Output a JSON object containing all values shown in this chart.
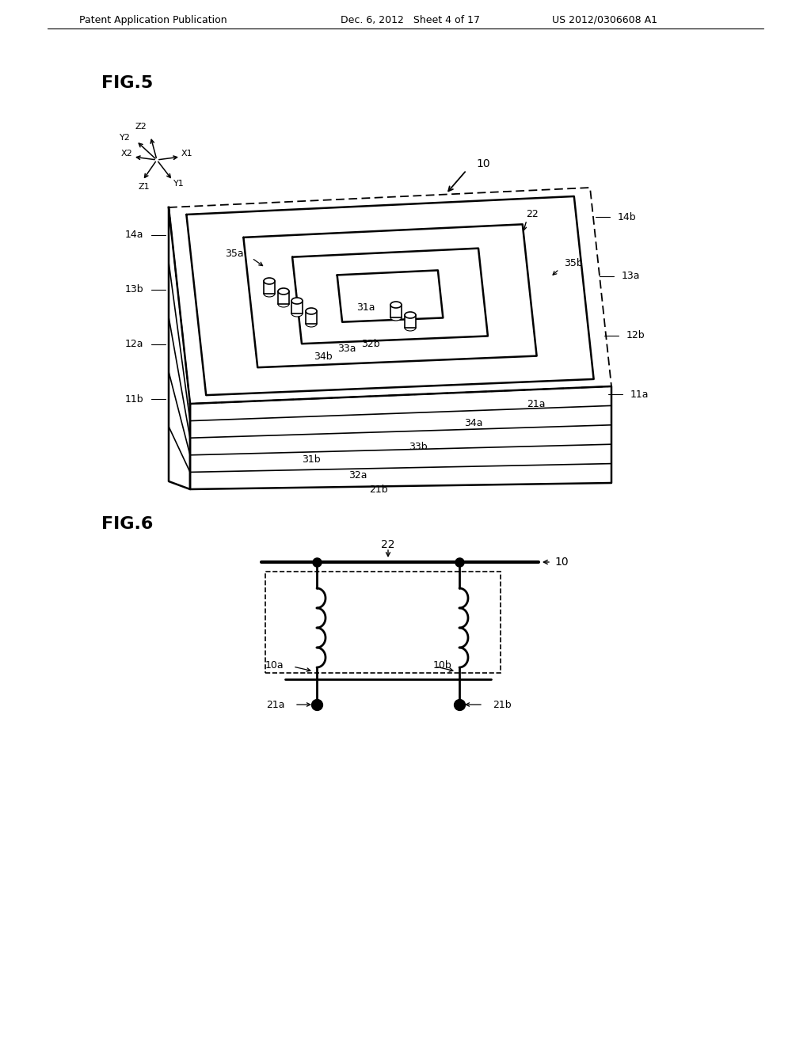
{
  "bg_color": "#ffffff",
  "header_left": "Patent Application Publication",
  "header_mid": "Dec. 6, 2012   Sheet 4 of 17",
  "header_right": "US 2012/0306608 A1",
  "fig5_label": "FIG.5",
  "fig6_label": "FIG.6",
  "line_color": "#000000"
}
